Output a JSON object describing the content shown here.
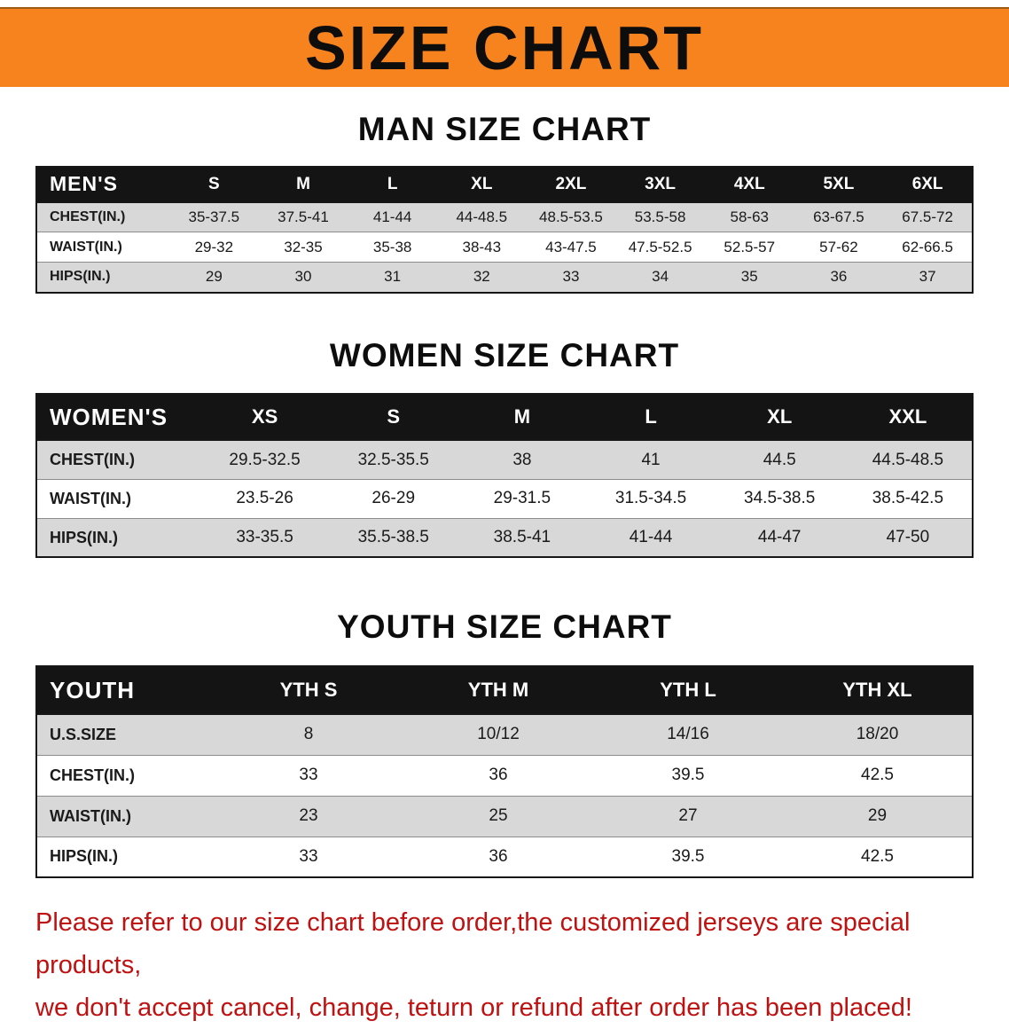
{
  "banner": {
    "title": "SIZE CHART"
  },
  "colors": {
    "banner_bg": "#f6831e",
    "table_header_bg": "#141414",
    "row_alt_bg": "#d8d8d8",
    "disclaimer_text": "#c01111"
  },
  "sections": [
    {
      "id": "men",
      "heading": "MAN SIZE CHART",
      "header_label": "MEN'S",
      "columns": [
        "S",
        "M",
        "L",
        "XL",
        "2XL",
        "3XL",
        "4XL",
        "5XL",
        "6XL"
      ],
      "rows": [
        {
          "label": "CHEST(IN.)",
          "values": [
            "35-37.5",
            "37.5-41",
            "41-44",
            "44-48.5",
            "48.5-53.5",
            "53.5-58",
            "58-63",
            "63-67.5",
            "67.5-72"
          ]
        },
        {
          "label": "WAIST(IN.)",
          "values": [
            "29-32",
            "32-35",
            "35-38",
            "38-43",
            "43-47.5",
            "47.5-52.5",
            "52.5-57",
            "57-62",
            "62-66.5"
          ]
        },
        {
          "label": "HIPS(IN.)",
          "values": [
            "29",
            "30",
            "31",
            "32",
            "33",
            "34",
            "35",
            "36",
            "37"
          ]
        }
      ]
    },
    {
      "id": "women",
      "heading": "WOMEN SIZE CHART",
      "header_label": "WOMEN'S",
      "columns": [
        "XS",
        "S",
        "M",
        "L",
        "XL",
        "XXL"
      ],
      "rows": [
        {
          "label": "CHEST(IN.)",
          "values": [
            "29.5-32.5",
            "32.5-35.5",
            "38",
            "41",
            "44.5",
            "44.5-48.5"
          ]
        },
        {
          "label": "WAIST(IN.)",
          "values": [
            "23.5-26",
            "26-29",
            "29-31.5",
            "31.5-34.5",
            "34.5-38.5",
            "38.5-42.5"
          ]
        },
        {
          "label": "HIPS(IN.)",
          "values": [
            "33-35.5",
            "35.5-38.5",
            "38.5-41",
            "41-44",
            "44-47",
            "47-50"
          ]
        }
      ]
    },
    {
      "id": "youth",
      "heading": "YOUTH SIZE CHART",
      "header_label": "YOUTH",
      "columns": [
        "YTH S",
        "YTH M",
        "YTH L",
        "YTH XL"
      ],
      "rows": [
        {
          "label": "U.S.SIZE",
          "values": [
            "8",
            "10/12",
            "14/16",
            "18/20"
          ]
        },
        {
          "label": "CHEST(IN.)",
          "values": [
            "33",
            "36",
            "39.5",
            "42.5"
          ]
        },
        {
          "label": "WAIST(IN.)",
          "values": [
            "23",
            "25",
            "27",
            "29"
          ]
        },
        {
          "label": "HIPS(IN.)",
          "values": [
            "33",
            "36",
            "39.5",
            "42.5"
          ]
        }
      ]
    }
  ],
  "disclaimer": {
    "line1": "Please refer to our size chart before order,the customized jerseys are special products,",
    "line2": "we don't accept cancel, change, teturn or refund after order has been placed!"
  }
}
